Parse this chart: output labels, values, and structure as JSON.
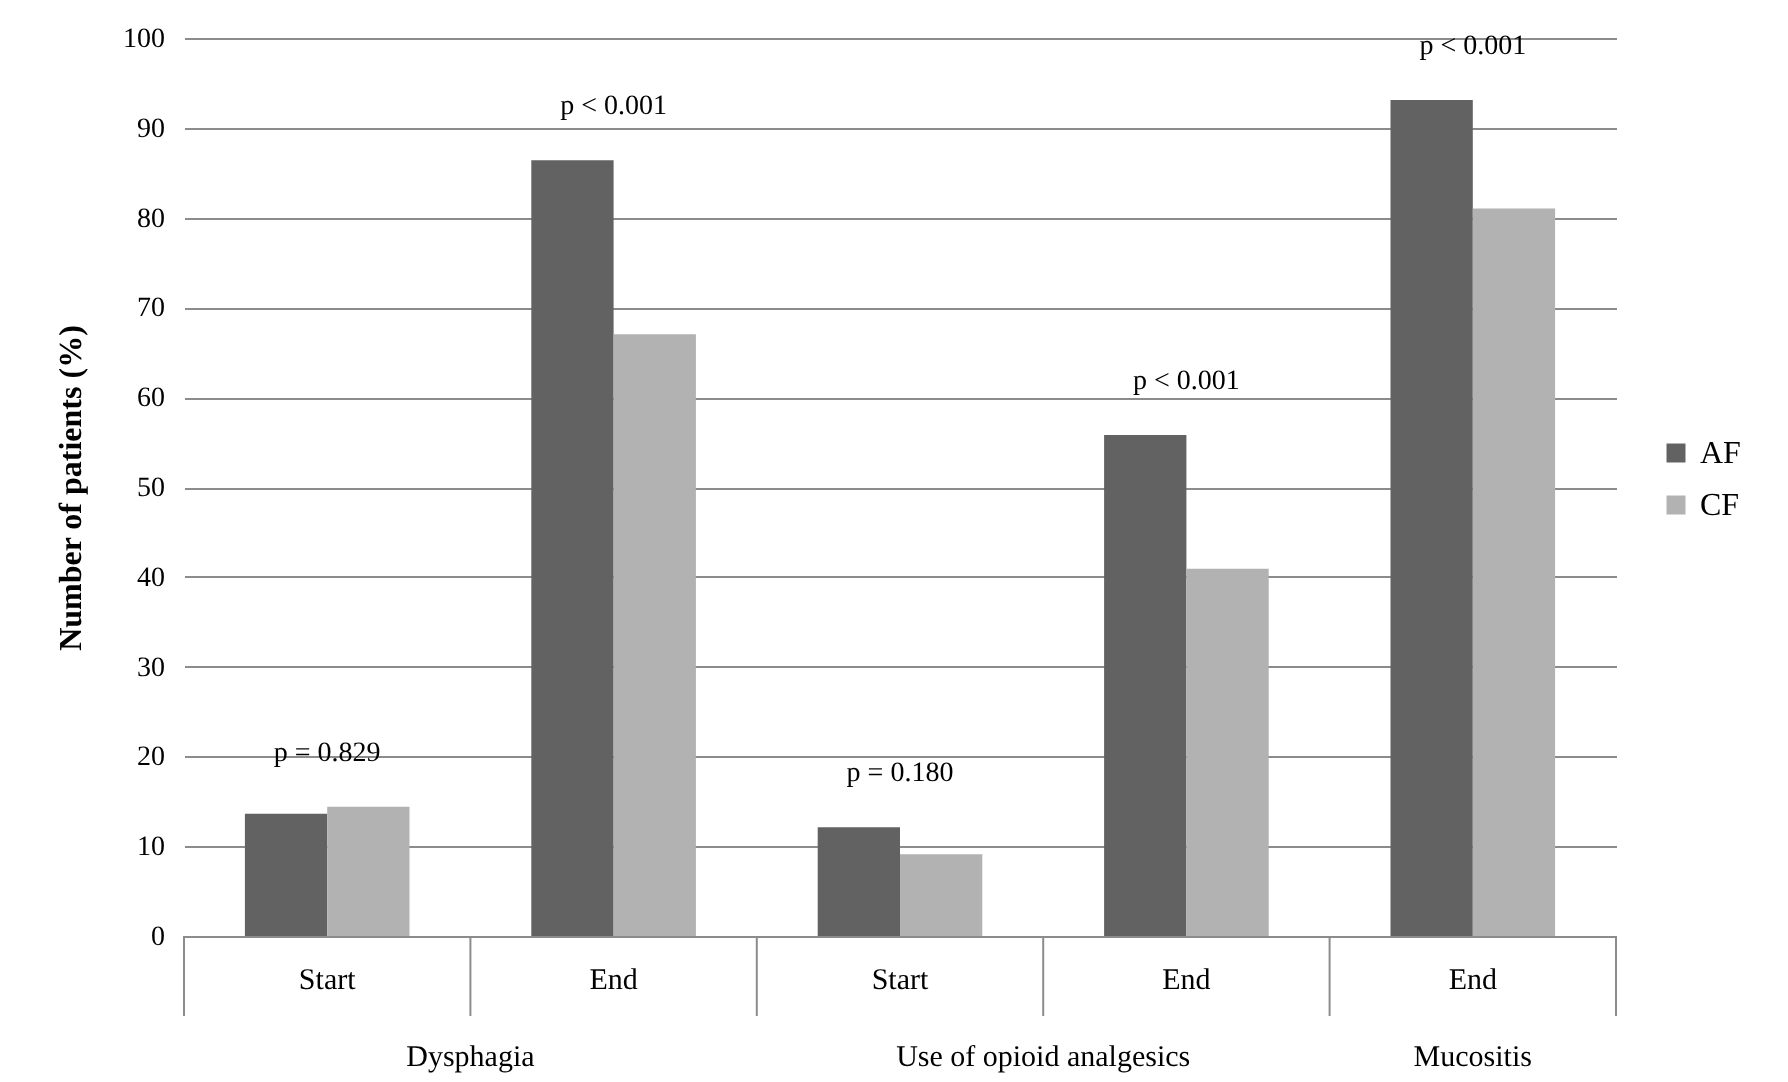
{
  "chart_data": {
    "type": "bar",
    "ylabel": "Number of patients (%)",
    "categories": [
      "Start",
      "End",
      "Start",
      "End",
      "End"
    ],
    "series": [
      {
        "name": "AF",
        "color": "#626262",
        "values": [
          13.6,
          86.4,
          12.1,
          55.8,
          93.1
        ]
      },
      {
        "name": "CF",
        "color": "#b2b2b2",
        "values": [
          14.4,
          67.0,
          9.1,
          40.9,
          81.0
        ]
      }
    ],
    "ylim": [
      0,
      100
    ],
    "yticks": [
      0,
      10,
      20,
      30,
      40,
      50,
      60,
      70,
      80,
      90,
      100
    ],
    "grid": "y",
    "legend": "right",
    "annotations": [
      "p = 0.829",
      "p < 0.001",
      "p = 0.180",
      "p < 0.001",
      "p < 0.001",
      "Dysphagia",
      "Use of opioid analgesics",
      "Mucositis"
    ]
  }
}
